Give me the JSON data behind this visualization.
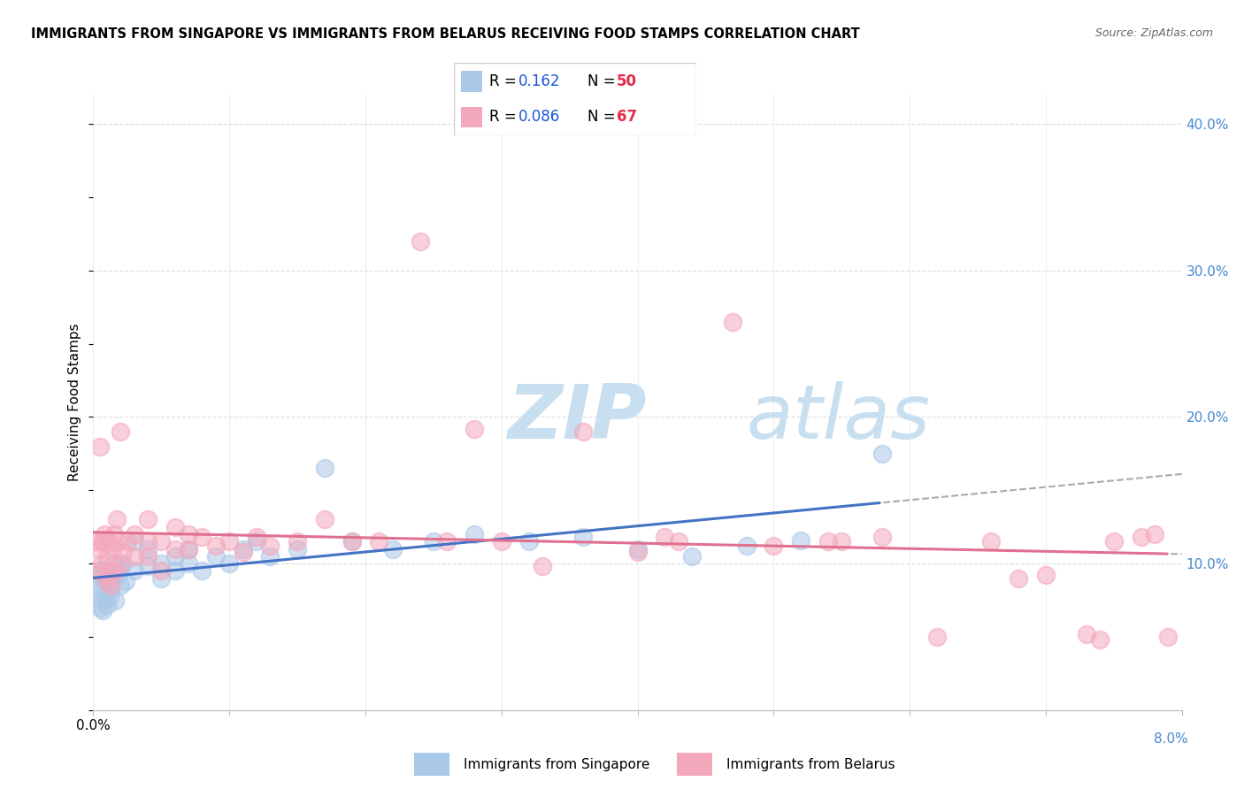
{
  "title": "IMMIGRANTS FROM SINGAPORE VS IMMIGRANTS FROM BELARUS RECEIVING FOOD STAMPS CORRELATION CHART",
  "source": "Source: ZipAtlas.com",
  "ylabel": "Receiving Food Stamps",
  "series": [
    {
      "name": "Immigrants from Singapore",
      "color": "#aac8e8",
      "line_color": "#4472c4",
      "R": "0.162",
      "N": "50",
      "x": [
        0.0002,
        0.0003,
        0.0004,
        0.0005,
        0.0005,
        0.0006,
        0.0007,
        0.0008,
        0.0009,
        0.001,
        0.001,
        0.0012,
        0.0013,
        0.0014,
        0.0015,
        0.0016,
        0.0018,
        0.002,
        0.002,
        0.0022,
        0.0024,
        0.003,
        0.003,
        0.004,
        0.004,
        0.005,
        0.005,
        0.006,
        0.006,
        0.007,
        0.007,
        0.008,
        0.009,
        0.01,
        0.011,
        0.012,
        0.013,
        0.015,
        0.017,
        0.019,
        0.022,
        0.025,
        0.028,
        0.032,
        0.036,
        0.04,
        0.044,
        0.048,
        0.052,
        0.058
      ],
      "y": [
        0.085,
        0.092,
        0.08,
        0.07,
        0.095,
        0.075,
        0.068,
        0.09,
        0.08,
        0.072,
        0.095,
        0.078,
        0.082,
        0.088,
        0.1,
        0.075,
        0.092,
        0.085,
        0.095,
        0.1,
        0.088,
        0.115,
        0.095,
        0.098,
        0.11,
        0.1,
        0.09,
        0.105,
        0.095,
        0.1,
        0.11,
        0.095,
        0.105,
        0.1,
        0.11,
        0.115,
        0.105,
        0.11,
        0.165,
        0.115,
        0.11,
        0.115,
        0.12,
        0.115,
        0.118,
        0.11,
        0.105,
        0.112,
        0.116,
        0.175
      ]
    },
    {
      "name": "Immigrants from Belarus",
      "color": "#f4a8bc",
      "line_color": "#e07090",
      "R": "0.086",
      "N": "67",
      "x": [
        0.0002,
        0.0003,
        0.0004,
        0.0005,
        0.0006,
        0.0007,
        0.0008,
        0.0009,
        0.001,
        0.001,
        0.001,
        0.0012,
        0.0013,
        0.0014,
        0.0015,
        0.0016,
        0.0017,
        0.0018,
        0.002,
        0.002,
        0.0022,
        0.0025,
        0.003,
        0.003,
        0.004,
        0.004,
        0.004,
        0.005,
        0.005,
        0.006,
        0.006,
        0.007,
        0.007,
        0.008,
        0.009,
        0.01,
        0.011,
        0.012,
        0.013,
        0.015,
        0.017,
        0.019,
        0.021,
        0.024,
        0.026,
        0.028,
        0.03,
        0.033,
        0.036,
        0.04,
        0.043,
        0.047,
        0.05,
        0.054,
        0.058,
        0.062,
        0.066,
        0.07,
        0.074,
        0.078,
        0.042,
        0.055,
        0.068,
        0.073,
        0.075,
        0.077,
        0.079
      ],
      "y": [
        0.115,
        0.095,
        0.11,
        0.18,
        0.1,
        0.115,
        0.12,
        0.092,
        0.088,
        0.105,
        0.115,
        0.095,
        0.085,
        0.11,
        0.12,
        0.095,
        0.13,
        0.115,
        0.1,
        0.19,
        0.108,
        0.115,
        0.105,
        0.12,
        0.115,
        0.105,
        0.13,
        0.095,
        0.115,
        0.11,
        0.125,
        0.11,
        0.12,
        0.118,
        0.112,
        0.115,
        0.108,
        0.118,
        0.112,
        0.115,
        0.13,
        0.115,
        0.115,
        0.32,
        0.115,
        0.192,
        0.115,
        0.098,
        0.19,
        0.108,
        0.115,
        0.265,
        0.112,
        0.115,
        0.118,
        0.05,
        0.115,
        0.092,
        0.048,
        0.12,
        0.118,
        0.115,
        0.09,
        0.052,
        0.115,
        0.118,
        0.05
      ]
    }
  ],
  "trend_singapore": {
    "intercept": 0.086,
    "slope": 0.58
  },
  "trend_belarus": {
    "intercept": 0.115,
    "slope": 0.32
  },
  "yticks_right": [
    0.1,
    0.2,
    0.3,
    0.4
  ],
  "ytick_labels_right": [
    "10.0%",
    "20.0%",
    "30.0%",
    "40.0%"
  ],
  "ymin": 0.0,
  "ymax": 0.42,
  "xmin": 0.0,
  "xmax": 0.08,
  "xtick_vals": [
    0.0,
    0.01,
    0.02,
    0.03,
    0.04,
    0.05,
    0.06,
    0.07,
    0.08
  ],
  "watermark_zip": "ZIP",
  "watermark_atlas": "atlas",
  "watermark_color_zip": "#c8dff0",
  "watermark_color_atlas": "#c8dff0",
  "legend_R_color": "#1a56d6",
  "legend_N_color": "#e8294a",
  "axis_color": "#bbbbbb",
  "grid_color_h": "#dddddd",
  "grid_color_v": "#e8e8e8",
  "title_fontsize": 10.5,
  "source_fontsize": 9,
  "right_axis_label_color": "#4488cc",
  "background_color": "#ffffff",
  "scatter_size": 200,
  "scatter_linewidth": 1.5
}
